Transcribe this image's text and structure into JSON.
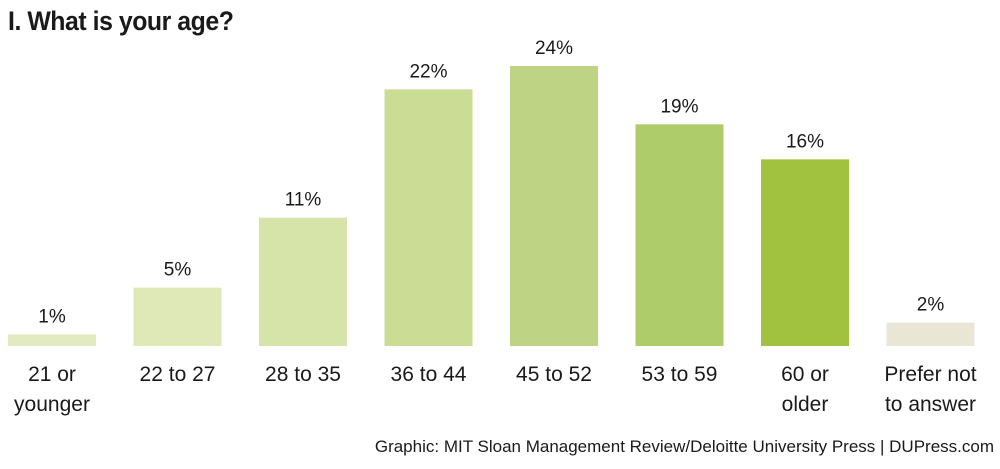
{
  "title": "I. What is your age?",
  "source": "Graphic: MIT Sloan Management Review/Deloitte University Press  |  DUPress.com",
  "chart_data": {
    "type": "bar",
    "title": "I. What is your age?",
    "categories": [
      [
        "21 or",
        "younger"
      ],
      [
        "22 to 27"
      ],
      [
        "28 to 35"
      ],
      [
        "36 to 44"
      ],
      [
        "45 to 52"
      ],
      [
        "53 to 59"
      ],
      [
        "60 or",
        "older"
      ],
      [
        "Prefer not",
        "to answer"
      ]
    ],
    "values": [
      1,
      5,
      11,
      22,
      24,
      19,
      16,
      2
    ],
    "value_labels": [
      "1%",
      "5%",
      "11%",
      "22%",
      "24%",
      "19%",
      "16%",
      "2%"
    ],
    "colors": [
      "#e2ebc0",
      "#dfe9b8",
      "#d6e4a9",
      "#cbdd95",
      "#bed383",
      "#afcc6a",
      "#a0c23f",
      "#e9e6d5"
    ],
    "ylim": [
      0,
      24
    ],
    "grid": false,
    "xlabel": "",
    "ylabel": ""
  }
}
